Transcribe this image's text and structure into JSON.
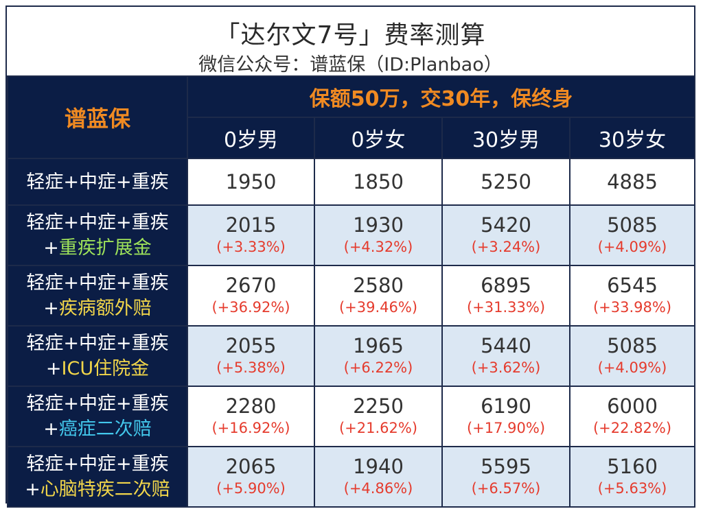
{
  "header": {
    "title": "「达尔文7号」费率测算",
    "subtitle": "微信公众号：谱蓝保（ID:Planbao）"
  },
  "table": {
    "brand": "谱蓝保",
    "span_header": "保额50万，交30年，保终身",
    "columns": [
      "0岁男",
      "0岁女",
      "30岁男",
      "30岁女"
    ],
    "base_row": {
      "label": "轻症+中症+重疾",
      "values": [
        "1950",
        "1850",
        "5250",
        "4885"
      ]
    },
    "rows": [
      {
        "label_base": "轻症+中症+重疾",
        "label_plus": "+",
        "label_extra": "重疾扩展金",
        "extra_color": "#9ee25a",
        "values": [
          "2015",
          "1930",
          "5420",
          "5085"
        ],
        "pcts": [
          "(+3.33%)",
          "(+4.32%)",
          "(+3.24%)",
          "(+4.09%)"
        ]
      },
      {
        "label_base": "轻症+中症+重疾",
        "label_plus": "+",
        "label_extra": "疾病额外赔",
        "extra_color": "#f2d64a",
        "values": [
          "2670",
          "2580",
          "6895",
          "6545"
        ],
        "pcts": [
          "(+36.92%)",
          "(+39.46%)",
          "(+31.33%)",
          "(+33.98%)"
        ]
      },
      {
        "label_base": "轻症+中症+重疾",
        "label_plus": "+",
        "label_extra": "ICU住院金",
        "extra_color": "#f2d64a",
        "values": [
          "2055",
          "1965",
          "5440",
          "5085"
        ],
        "pcts": [
          "(+5.38%)",
          "(+6.22%)",
          "(+3.62%)",
          "(+4.09%)"
        ]
      },
      {
        "label_base": "轻症+中症+重疾",
        "label_plus": "+",
        "label_extra": "癌症二次赔",
        "extra_color": "#43c8ec",
        "values": [
          "2280",
          "2250",
          "6190",
          "6000"
        ],
        "pcts": [
          "(+16.92%)",
          "(+21.62%)",
          "(+17.90%)",
          "(+22.82%)"
        ]
      },
      {
        "label_base": "轻症+中症+重疾",
        "label_plus": "+",
        "label_extra": "心脑特疾二次赔",
        "extra_color": "#f2d64a",
        "values": [
          "2065",
          "1940",
          "5595",
          "5160"
        ],
        "pcts": [
          "(+5.90%)",
          "(+4.86%)",
          "(+6.57%)",
          "(+5.63%)"
        ]
      }
    ]
  }
}
